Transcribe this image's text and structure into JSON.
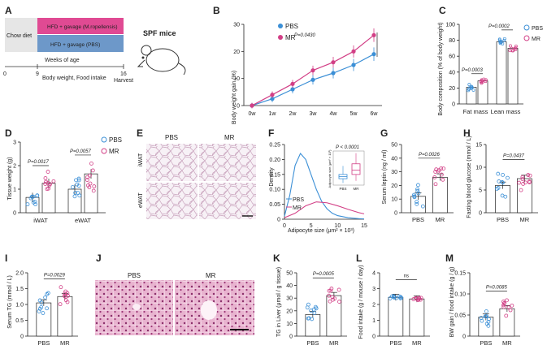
{
  "colors": {
    "pbs": "#3b8fd6",
    "mr": "#d23f86",
    "chow": "#e6e6e6",
    "hfd_mr": "#e04a93",
    "hfd_pbs": "#6d98c9",
    "he_bg": "#f3dbe9",
    "he_cell": "#d98fb8",
    "adipose_bg": "#f4eef3",
    "adipose_line": "#c9a3bd"
  },
  "panels": {
    "a": "A",
    "b": "B",
    "c": "C",
    "d": "D",
    "e": "E",
    "f": "F",
    "g": "G",
    "h": "H",
    "i": "I",
    "j": "J",
    "k": "K",
    "l": "L",
    "m": "M"
  },
  "schematic": {
    "chow": "Chow diet",
    "hfd_mr": "HFD + gavage (M.ropellensis)",
    "hfd_pbs": "HFD + gavage (PBS)",
    "weeks": "Weeks of age",
    "week_ticks": [
      "0",
      "9",
      "16"
    ],
    "measure": "Body weight, Food intake",
    "harvest": "Harvest",
    "spf": "SPF mice"
  },
  "legend": {
    "pbs": "PBS",
    "mr": "MR"
  },
  "histology": {
    "pbs": "PBS",
    "mr": "MR",
    "iwat": "iWAT",
    "ewat": "eWAT"
  },
  "chart_data": [
    {
      "id": "b",
      "type": "line",
      "title": "",
      "xlabel": "",
      "ylabel": "Body weight gain (%)",
      "x": [
        "0w",
        "1w",
        "2w",
        "3w",
        "4w",
        "5w",
        "6w"
      ],
      "ylim": [
        0,
        30
      ],
      "yticks": [
        "0",
        "10",
        "20",
        "30"
      ],
      "series": [
        {
          "name": "PBS",
          "values": [
            0,
            2.5,
            6,
            9.5,
            12,
            15,
            19
          ]
        },
        {
          "name": "MR",
          "values": [
            0,
            4,
            8,
            13,
            16,
            20,
            26
          ]
        }
      ],
      "annotation": "P=0.0430"
    },
    {
      "id": "c",
      "type": "bar",
      "ylabel": "Body composition (% of body weight)",
      "categories": [
        "Fat mass",
        "Lean mass"
      ],
      "ylim": [
        0,
        100
      ],
      "yticks": [
        "0",
        "20",
        "40",
        "60",
        "80",
        "100"
      ],
      "series": [
        {
          "name": "PBS",
          "values": [
            21,
            78
          ]
        },
        {
          "name": "MR",
          "values": [
            29,
            70
          ]
        }
      ],
      "annotations": [
        "P=0.0003",
        "P=0.0002"
      ]
    },
    {
      "id": "d",
      "type": "bar",
      "ylabel": "Tissue weight (g)",
      "categories": [
        "iWAT",
        "eWAT"
      ],
      "ylim": [
        0,
        3
      ],
      "yticks": [
        "0",
        "1",
        "2",
        "3"
      ],
      "series": [
        {
          "name": "PBS",
          "values": [
            0.65,
            1.0
          ]
        },
        {
          "name": "MR",
          "values": [
            1.25,
            1.65
          ]
        }
      ],
      "annotations": [
        "P=0.0017",
        "P=0.0057"
      ]
    },
    {
      "id": "f",
      "type": "line",
      "ylabel": "Density",
      "xlabel": "Adipocyte size (μm² × 10³)",
      "xlim": [
        0,
        15
      ],
      "ylim": [
        0,
        0.25
      ],
      "xticks": [
        "0",
        "5",
        "10",
        "15"
      ],
      "yticks": [
        "0",
        "0.05",
        "0.10",
        "0.15",
        "0.20",
        "0.25"
      ],
      "series": [
        {
          "name": "PBS",
          "x": [
            0,
            1,
            2,
            3,
            4,
            5,
            6,
            7,
            8,
            9,
            10,
            12,
            14,
            15
          ],
          "values": [
            0.01,
            0.08,
            0.18,
            0.22,
            0.2,
            0.15,
            0.1,
            0.06,
            0.035,
            0.02,
            0.012,
            0.005,
            0.002,
            0.001
          ]
        },
        {
          "name": "MR",
          "x": [
            0,
            2,
            4,
            6,
            8,
            10,
            12,
            14,
            15
          ],
          "values": [
            0.005,
            0.02,
            0.045,
            0.058,
            0.055,
            0.045,
            0.033,
            0.022,
            0.018
          ]
        }
      ],
      "inset": {
        "ylabel": "Adipocyte size (μm² × 10³)",
        "p": "P < 0.0001",
        "categories": [
          "PBS",
          "MR"
        ],
        "box": [
          {
            "q1": 3,
            "median": 4,
            "q3": 5,
            "min": 1,
            "max": 9
          },
          {
            "q1": 5,
            "median": 7,
            "q3": 10,
            "min": 2,
            "max": 15
          }
        ]
      }
    },
    {
      "id": "g",
      "type": "bar",
      "ylabel": "Serum leptin (ng / ml)",
      "categories": [
        "PBS",
        "MR"
      ],
      "values": [
        12,
        26
      ],
      "ylim": [
        0,
        50
      ],
      "yticks": [
        "0",
        "10",
        "20",
        "30",
        "40",
        "50"
      ],
      "annotation": "P=0.0026"
    },
    {
      "id": "h",
      "type": "bar",
      "ylabel": "Fasting blood glucose (mmol / L)",
      "categories": [
        "PBS",
        "MR"
      ],
      "values": [
        6,
        7.5
      ],
      "ylim": [
        0,
        15
      ],
      "yticks": [
        "0",
        "5",
        "10",
        "15"
      ],
      "annotation": "P=0.0437"
    },
    {
      "id": "i",
      "type": "bar",
      "ylabel": "Serum TG (mmol / L)",
      "categories": [
        "PBS",
        "MR"
      ],
      "values": [
        1.05,
        1.25
      ],
      "ylim": [
        0,
        2.0
      ],
      "yticks": [
        "0",
        "0.5",
        "1.0",
        "1.5",
        "2.0"
      ],
      "annotation": "P=0.0029"
    },
    {
      "id": "k",
      "type": "bar",
      "ylabel": "TG in Liver (μmol / g tissue)",
      "categories": [
        "PBS",
        "MR"
      ],
      "values": [
        17,
        32
      ],
      "ylim": [
        0,
        50
      ],
      "yticks": [
        "0",
        "10",
        "20",
        "30",
        "40",
        "50"
      ],
      "annotation": "P=0.0005"
    },
    {
      "id": "l",
      "type": "bar",
      "ylabel": "Food intake (g / mouse / day)",
      "categories": [
        "PBS",
        "MR"
      ],
      "values": [
        2.45,
        2.35
      ],
      "ylim": [
        0,
        4
      ],
      "yticks": [
        "0",
        "1",
        "2",
        "3",
        "4"
      ],
      "annotation": "ns"
    },
    {
      "id": "m",
      "type": "bar",
      "ylabel": "BW gain / food intake (g / g)",
      "categories": [
        "PBS",
        "MR"
      ],
      "values": [
        0.045,
        0.065
      ],
      "ylim": [
        0,
        0.15
      ],
      "yticks": [
        "0",
        "0.05",
        "0.10",
        "0.15"
      ],
      "annotation": "P=0.0085"
    }
  ]
}
